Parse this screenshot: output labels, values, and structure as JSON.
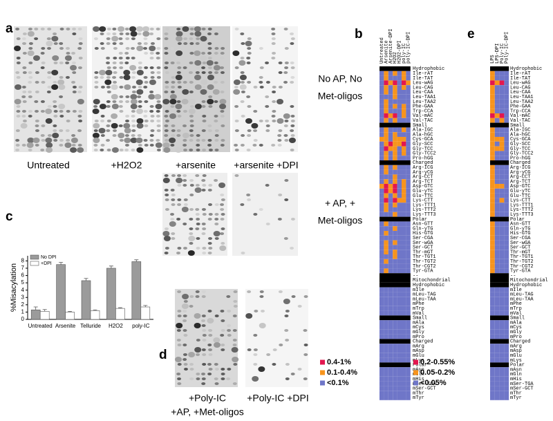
{
  "panel_labels": [
    "a",
    "b",
    "c",
    "d",
    "e"
  ],
  "panel_a": {
    "labels": [
      "Untreated",
      "+H2O2",
      "+arsenite",
      "+arsenite +DPI"
    ],
    "row1_label": [
      "No AP, No",
      "Met-oligos"
    ],
    "row2_label": [
      "+ AP, +",
      "Met-oligos"
    ]
  },
  "panel_d": {
    "labels": [
      "+Poly-IC",
      "+AP, +Met-oligos",
      "+Poly-IC +DPI"
    ]
  },
  "heatmap_rows": [
    "Hydrophobic",
    "Ile-rAT",
    "Ile-TAT",
    "Leu-wAG",
    "Leu-CAG",
    "Leu-CAA",
    "Leu-TAA1",
    "Leu-TAA2",
    "Phe-GAA",
    "Trp-CCA",
    "Val-mAC",
    "Val-TAC",
    "Small",
    "Ala-IGC",
    "Ala-hGC",
    "Cys-GCA",
    "Gly-SCC",
    "Gly-TCC",
    "Gly-TCC2",
    "Pro-hGG",
    "Charged",
    "Arg-ICG",
    "Arg-yCG",
    "Arg-CCT",
    "Arg-TCT",
    "Asp-GTC",
    "Glu-yTC",
    "Glu-TTC",
    "Lys-CTT",
    "Lys-TTT1",
    "Lys-TTT2",
    "Lys-TTT3",
    "Polar",
    "Asn-GTT",
    "Gln-yTG",
    "His-GTG",
    "Ser-CGA",
    "Ser-wGA",
    "Ser-GCT",
    "Thr-mGT",
    "Thr-TGT1",
    "Thr-TGT2",
    "Thr-CGT2",
    "Tyr-GTA",
    "--",
    "Mitochondrial",
    "Hydrophobic",
    "mIle",
    "mLeu-TAG",
    "mLeu-TAA",
    "mPhe",
    "mTrp",
    "mVal",
    "Small",
    "mAla",
    "mCys",
    "mGly",
    "mPro",
    "Charged",
    "mArg",
    "mAsp",
    "mGlu",
    "mLys",
    "Polar",
    "mAsn",
    "mGln",
    "mHis",
    "mSer-TGA",
    "mSer-GCT",
    "mThr",
    "mTyr"
  ],
  "heatmap_b": {
    "columns": [
      "Untreated",
      "Arsenite",
      "Arsenite-DPI",
      "H2O2",
      "H2O2-DPI",
      "poly-IC",
      "poly-IC-DPI"
    ],
    "legend": [
      {
        "label": "<0.1%",
        "color": "#6f76c8"
      },
      {
        "label": "0.1-0.4%",
        "color": "#f7941d"
      },
      {
        "label": "0.4-1%",
        "color": "#e3174f"
      }
    ],
    "header_color": "#000000",
    "cells": [
      null,
      [
        0,
        1,
        0,
        1,
        0,
        1,
        0
      ],
      [
        0,
        1,
        0,
        0,
        0,
        1,
        0
      ],
      [
        0,
        2,
        1,
        2,
        0,
        2,
        1
      ],
      [
        0,
        1,
        0,
        1,
        0,
        1,
        0
      ],
      [
        0,
        1,
        0,
        1,
        0,
        0,
        0
      ],
      [
        0,
        0,
        0,
        1,
        0,
        0,
        0
      ],
      [
        0,
        1,
        0,
        0,
        0,
        0,
        0
      ],
      [
        0,
        1,
        0,
        1,
        0,
        1,
        0
      ],
      [
        0,
        1,
        0,
        0,
        0,
        1,
        0
      ],
      [
        0,
        2,
        1,
        2,
        0,
        1,
        0
      ],
      [
        0,
        1,
        0,
        1,
        0,
        0,
        0
      ],
      null,
      [
        0,
        1,
        0,
        0,
        0,
        1,
        0
      ],
      [
        0,
        1,
        0,
        1,
        0,
        0,
        0
      ],
      [
        1,
        1,
        0,
        1,
        1,
        1,
        0
      ],
      [
        0,
        1,
        2,
        1,
        1,
        2,
        0
      ],
      [
        0,
        2,
        1,
        1,
        0,
        1,
        0
      ],
      [
        0,
        1,
        0,
        1,
        0,
        1,
        0
      ],
      [
        0,
        1,
        0,
        1,
        0,
        0,
        0
      ],
      null,
      [
        0,
        1,
        0,
        1,
        0,
        0,
        0
      ],
      [
        0,
        1,
        0,
        0,
        0,
        0,
        0
      ],
      [
        0,
        0,
        0,
        1,
        0,
        0,
        0
      ],
      [
        0,
        1,
        0,
        1,
        0,
        1,
        0
      ],
      [
        1,
        2,
        1,
        2,
        0,
        1,
        0
      ],
      [
        0,
        2,
        1,
        2,
        0,
        1,
        0
      ],
      [
        0,
        1,
        0,
        1,
        0,
        1,
        0
      ],
      [
        0,
        2,
        0,
        2,
        1,
        1,
        0
      ],
      [
        0,
        1,
        0,
        1,
        0,
        0,
        0
      ],
      [
        0,
        1,
        0,
        0,
        0,
        0,
        0
      ],
      [
        0,
        0,
        0,
        1,
        0,
        0,
        0
      ],
      null,
      [
        0,
        1,
        0,
        0,
        0,
        0,
        0
      ],
      [
        0,
        0,
        0,
        1,
        0,
        0,
        0
      ],
      [
        0,
        1,
        0,
        0,
        0,
        0,
        0
      ],
      [
        0,
        0,
        0,
        0,
        0,
        0,
        0
      ],
      [
        0,
        1,
        0,
        1,
        0,
        0,
        0
      ],
      [
        0,
        1,
        0,
        0,
        0,
        0,
        0
      ],
      [
        0,
        1,
        0,
        1,
        0,
        0,
        0
      ],
      [
        0,
        0,
        0,
        1,
        0,
        0,
        0
      ],
      [
        0,
        1,
        0,
        0,
        0,
        0,
        0
      ],
      [
        0,
        0,
        0,
        0,
        0,
        0,
        0
      ],
      [
        0,
        1,
        0,
        0,
        0,
        0,
        0
      ],
      null,
      null,
      null,
      [
        0,
        0,
        0,
        0,
        0,
        0,
        0
      ],
      [
        0,
        0,
        0,
        0,
        0,
        0,
        0
      ],
      [
        0,
        0,
        0,
        0,
        0,
        0,
        0
      ],
      [
        0,
        0,
        0,
        0,
        0,
        0,
        0
      ],
      [
        0,
        0,
        0,
        0,
        0,
        0,
        0
      ],
      [
        0,
        0,
        0,
        0,
        0,
        0,
        0
      ],
      null,
      [
        0,
        0,
        0,
        0,
        0,
        0,
        0
      ],
      [
        0,
        0,
        0,
        0,
        0,
        0,
        0
      ],
      [
        0,
        0,
        0,
        0,
        0,
        0,
        0
      ],
      [
        0,
        0,
        0,
        0,
        0,
        0,
        0
      ],
      null,
      [
        0,
        0,
        0,
        0,
        0,
        0,
        0
      ],
      [
        0,
        0,
        0,
        0,
        0,
        0,
        0
      ],
      [
        0,
        0,
        0,
        0,
        0,
        0,
        0
      ],
      [
        0,
        0,
        0,
        0,
        0,
        0,
        0
      ],
      null,
      [
        0,
        0,
        0,
        0,
        0,
        0,
        0
      ],
      [
        0,
        0,
        0,
        0,
        0,
        0,
        0
      ],
      [
        0,
        0,
        0,
        0,
        0,
        0,
        0
      ],
      [
        0,
        0,
        0,
        0,
        0,
        0,
        0
      ],
      [
        0,
        0,
        0,
        0,
        0,
        0,
        0
      ],
      [
        0,
        0,
        0,
        0,
        0,
        0,
        0
      ],
      [
        0,
        0,
        0,
        0,
        0,
        0,
        0
      ]
    ]
  },
  "heatmap_e": {
    "columns": [
      "LPS",
      "LPS-DPI",
      "Poly-IC",
      "Poly-IC-DPI"
    ],
    "legend": [
      {
        "label": "<0.05%",
        "color": "#6f76c8"
      },
      {
        "label": "0.05-0.2%",
        "color": "#f7941d"
      },
      {
        "label": "0.2-0.55%",
        "color": "#e3174f"
      }
    ],
    "header_color": "#000000",
    "cells": [
      null,
      [
        1,
        0,
        0,
        0
      ],
      [
        1,
        0,
        0,
        0
      ],
      [
        2,
        1,
        2,
        0
      ],
      [
        1,
        0,
        0,
        0
      ],
      [
        1,
        0,
        0,
        0
      ],
      [
        1,
        0,
        0,
        0
      ],
      [
        1,
        0,
        0,
        0
      ],
      [
        1,
        0,
        0,
        0
      ],
      [
        1,
        0,
        0,
        0
      ],
      [
        2,
        1,
        2,
        0
      ],
      [
        1,
        0,
        1,
        0
      ],
      null,
      [
        1,
        0,
        0,
        0
      ],
      [
        1,
        0,
        0,
        0
      ],
      [
        1,
        1,
        1,
        0
      ],
      [
        1,
        0,
        1,
        0
      ],
      [
        1,
        1,
        1,
        0
      ],
      [
        1,
        0,
        0,
        0
      ],
      [
        1,
        0,
        0,
        0
      ],
      null,
      [
        1,
        0,
        0,
        0
      ],
      [
        1,
        0,
        0,
        0
      ],
      [
        1,
        0,
        0,
        0
      ],
      [
        1,
        0,
        0,
        0
      ],
      [
        1,
        1,
        1,
        0
      ],
      [
        1,
        0,
        0,
        0
      ],
      [
        1,
        0,
        0,
        0
      ],
      [
        1,
        0,
        1,
        0
      ],
      [
        1,
        0,
        0,
        0
      ],
      [
        1,
        0,
        0,
        0
      ],
      [
        1,
        0,
        0,
        0
      ],
      null,
      [
        1,
        0,
        0,
        0
      ],
      [
        1,
        0,
        0,
        0
      ],
      [
        1,
        0,
        0,
        0
      ],
      [
        1,
        0,
        0,
        0
      ],
      [
        1,
        0,
        0,
        0
      ],
      [
        1,
        0,
        0,
        0
      ],
      [
        1,
        0,
        0,
        0
      ],
      [
        1,
        0,
        0,
        0
      ],
      [
        1,
        0,
        0,
        0
      ],
      [
        1,
        0,
        0,
        0
      ],
      [
        1,
        0,
        0,
        0
      ],
      null,
      null,
      null,
      [
        0,
        0,
        0,
        0
      ],
      [
        0,
        0,
        0,
        0
      ],
      [
        0,
        0,
        0,
        0
      ],
      [
        0,
        0,
        0,
        0
      ],
      [
        0,
        0,
        0,
        0
      ],
      [
        0,
        0,
        0,
        0
      ],
      null,
      [
        0,
        0,
        0,
        0
      ],
      [
        0,
        0,
        0,
        0
      ],
      [
        0,
        0,
        0,
        0
      ],
      [
        0,
        0,
        0,
        0
      ],
      null,
      [
        0,
        0,
        0,
        0
      ],
      [
        0,
        0,
        0,
        0
      ],
      [
        0,
        0,
        0,
        0
      ],
      [
        0,
        0,
        0,
        0
      ],
      null,
      [
        0,
        0,
        0,
        0
      ],
      [
        0,
        0,
        0,
        0
      ],
      [
        0,
        0,
        0,
        0
      ],
      [
        0,
        0,
        0,
        0
      ],
      [
        0,
        0,
        0,
        0
      ],
      [
        0,
        0,
        0,
        0
      ],
      [
        0,
        0,
        0,
        0
      ]
    ]
  },
  "chart_data": {
    "type": "bar",
    "ylabel": "%Misacylation",
    "categories": [
      "Untreated",
      "Arsenite",
      "Telluride",
      "H2O2",
      "poly-IC"
    ],
    "series": [
      {
        "name": "No DPI",
        "color": "#9b9b9b",
        "values": [
          1.3,
          7.5,
          5.3,
          7.0,
          7.9
        ],
        "errors": [
          0.4,
          0.3,
          0.3,
          0.3,
          0.25
        ]
      },
      {
        "name": "+DPI",
        "color": "#ffffff",
        "values": [
          1.1,
          1.0,
          1.2,
          1.5,
          1.7
        ],
        "errors": [
          0.25,
          0.1,
          0.1,
          0.1,
          0.2
        ]
      }
    ],
    "ylim": [
      0,
      8.7
    ],
    "yticks": [
      0,
      1,
      2,
      3,
      4,
      5,
      6,
      7,
      8
    ],
    "legend": "upper left"
  }
}
